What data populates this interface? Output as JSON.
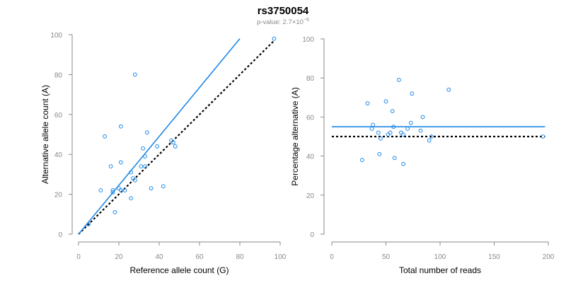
{
  "title": "rs3750054",
  "subtitle": {
    "prefix": "p-value: 2.7",
    "times": "×",
    "base": "10",
    "exponent": "−5"
  },
  "colors": {
    "accent": "#1e88e5",
    "reference_line": "#000000",
    "axis": "#8a8a8a"
  },
  "chart_data": [
    {
      "type": "scatter",
      "id": "left",
      "xlabel": "Reference allele count (G)",
      "ylabel": "Alternative allele count (A)",
      "xlim": [
        0,
        100
      ],
      "ylim": [
        0,
        100
      ],
      "xticks": [
        0,
        20,
        40,
        60,
        80,
        100
      ],
      "yticks": [
        0,
        20,
        40,
        60,
        80,
        100
      ],
      "points": [
        [
          5,
          5
        ],
        [
          11,
          22
        ],
        [
          13,
          49
        ],
        [
          16,
          34
        ],
        [
          17,
          22
        ],
        [
          17,
          21
        ],
        [
          18,
          11
        ],
        [
          20,
          23
        ],
        [
          21,
          22
        ],
        [
          21,
          36
        ],
        [
          21,
          54
        ],
        [
          23,
          22
        ],
        [
          26,
          31
        ],
        [
          26,
          18
        ],
        [
          27,
          28
        ],
        [
          28,
          27
        ],
        [
          28,
          80
        ],
        [
          31,
          34
        ],
        [
          32,
          43
        ],
        [
          33,
          34
        ],
        [
          33,
          39
        ],
        [
          34,
          51
        ],
        [
          36,
          23
        ],
        [
          39,
          44
        ],
        [
          42,
          24
        ],
        [
          46,
          47
        ],
        [
          47,
          46
        ],
        [
          48,
          44
        ],
        [
          97,
          98
        ]
      ],
      "fit_line": {
        "x": [
          0,
          80
        ],
        "y": [
          0,
          98
        ]
      },
      "reference_line": {
        "x": [
          0,
          97
        ],
        "y": [
          0,
          97
        ]
      }
    },
    {
      "type": "scatter",
      "id": "right",
      "xlabel": "Total number of reads",
      "ylabel": "Percentage alternative (A)",
      "xlim": [
        0,
        200
      ],
      "ylim": [
        0,
        100
      ],
      "xticks": [
        0,
        50,
        100,
        150,
        200
      ],
      "yticks": [
        0,
        20,
        40,
        60,
        80,
        100
      ],
      "points": [
        [
          28,
          38
        ],
        [
          33,
          67
        ],
        [
          37,
          54
        ],
        [
          38,
          56
        ],
        [
          43,
          52
        ],
        [
          45,
          49
        ],
        [
          44,
          41
        ],
        [
          50,
          68
        ],
        [
          52,
          51
        ],
        [
          54,
          52
        ],
        [
          56,
          63
        ],
        [
          57,
          55
        ],
        [
          58,
          39
        ],
        [
          62,
          79
        ],
        [
          64,
          52
        ],
        [
          66,
          51
        ],
        [
          66,
          36
        ],
        [
          70,
          54
        ],
        [
          73,
          57
        ],
        [
          74,
          72
        ],
        [
          82,
          53
        ],
        [
          84,
          60
        ],
        [
          90,
          48
        ],
        [
          92,
          50
        ],
        [
          108,
          74
        ],
        [
          195,
          50
        ]
      ],
      "fit_line": {
        "x": [
          0,
          197
        ],
        "y": [
          55,
          55
        ]
      },
      "reference_line": {
        "x": [
          0,
          197
        ],
        "y": [
          50,
          50
        ]
      }
    }
  ]
}
